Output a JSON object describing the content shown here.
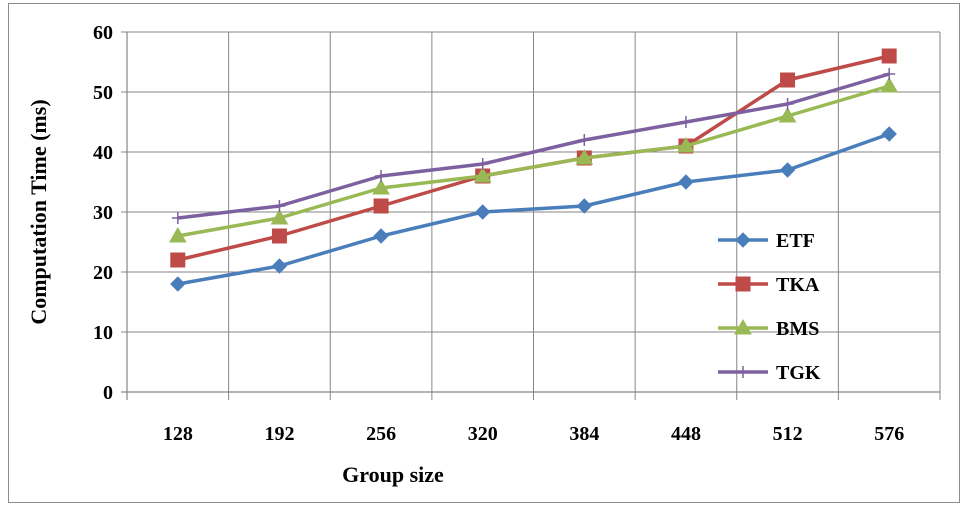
{
  "chart_data": {
    "type": "line",
    "categories": [
      "128",
      "192",
      "256",
      "320",
      "384",
      "448",
      "512",
      "576"
    ],
    "series": [
      {
        "name": "ETF",
        "values": [
          18,
          21,
          26,
          30,
          31,
          35,
          37,
          43
        ],
        "color": "#4a7ebb",
        "marker": "diamond"
      },
      {
        "name": "TKA",
        "values": [
          22,
          26,
          31,
          36,
          39,
          41,
          52,
          56
        ],
        "color": "#be4b48",
        "marker": "square"
      },
      {
        "name": "BMS",
        "values": [
          26,
          29,
          34,
          36,
          39,
          41,
          46,
          51
        ],
        "color": "#98b954",
        "marker": "triangle"
      },
      {
        "name": "TGK",
        "values": [
          29,
          31,
          36,
          38,
          42,
          45,
          48,
          53
        ],
        "color": "#7d60a0",
        "marker": "plus"
      }
    ],
    "xlabel": "Group size",
    "ylabel": "Computation Time (ms)",
    "ylim": [
      0,
      60
    ],
    "yticks": [
      "0",
      "10",
      "20",
      "30",
      "40",
      "50",
      "60"
    ],
    "grid": "both",
    "legend": "right"
  }
}
